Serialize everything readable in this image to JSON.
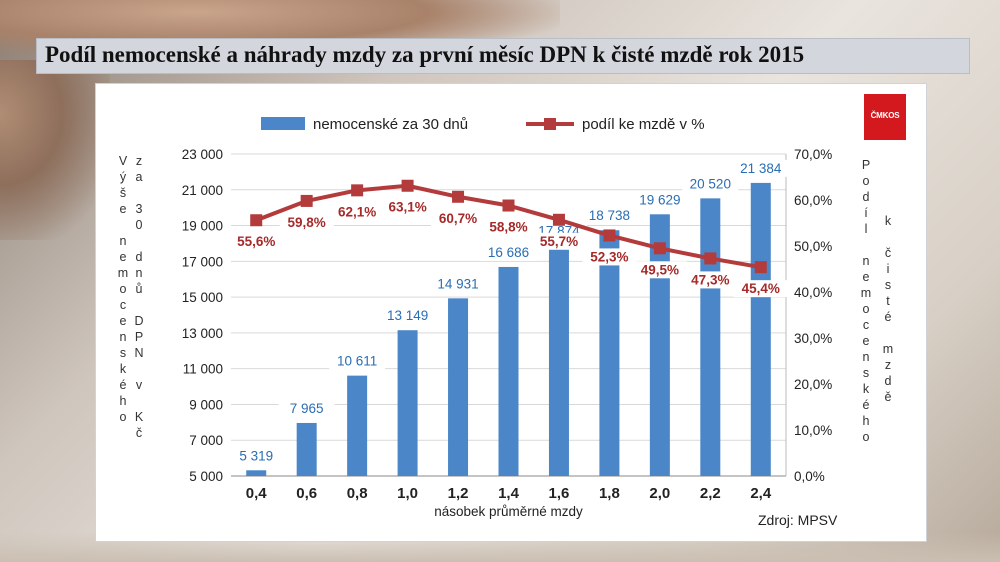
{
  "title": "Podíl nemocenské a náhrady mzdy za první měsíc DPN k čisté mzdě rok 2015",
  "logo_text": "ČMKOS",
  "source": "Zdroj: MPSV",
  "colors": {
    "bar": "#4a86c8",
    "line": "#b33b3b",
    "label_blue": "#2a6db3",
    "label_red": "#a52a2a"
  },
  "chart_data": {
    "type": "bar+line",
    "categories": [
      "0,4",
      "0,6",
      "0,8",
      "1,0",
      "1,2",
      "1,4",
      "1,6",
      "1,8",
      "2,0",
      "2,2",
      "2,4"
    ],
    "xlabel": "násobek průměrné mzdy",
    "ylabel_left_col1": "Výše nemocenského",
    "ylabel_left_col2": "za 30 dnů DPN v Kč",
    "ylabel_right_col1": "Podíl nemocenského",
    "ylabel_right_col2": "k čisté mzdě",
    "ylim_left": [
      5000,
      23000
    ],
    "ylim_right": [
      0,
      70
    ],
    "left_ticks": [
      "5 000",
      "7 000",
      "9 000",
      "11 000",
      "13 000",
      "15 000",
      "17 000",
      "19 000",
      "21 000",
      "23 000"
    ],
    "right_ticks": [
      "0,0%",
      "10,0%",
      "20,0%",
      "30,0%",
      "40,0%",
      "50,0%",
      "60,0%",
      "70,0%"
    ],
    "legend_position": "top",
    "grid": "horizontal",
    "series": [
      {
        "name": "nemocenské za 30 dnů",
        "type": "bar",
        "axis": "left",
        "values": [
          5319,
          7965,
          10611,
          13149,
          14931,
          16686,
          17874,
          18738,
          19629,
          20520,
          21384
        ],
        "labels": [
          "5 319",
          "7 965",
          "10 611",
          "13 149",
          "14 931",
          "16 686",
          "17 874",
          "18 738",
          "19 629",
          "20 520",
          "21 384"
        ]
      },
      {
        "name": "podíl ke mzdě v %",
        "type": "line",
        "axis": "right",
        "values": [
          55.6,
          59.8,
          62.1,
          63.1,
          60.7,
          58.8,
          55.7,
          52.3,
          49.5,
          47.3,
          45.4
        ],
        "labels": [
          "55,6%",
          "59,8%",
          "62,1%",
          "63,1%",
          "60,7%",
          "58,8%",
          "55,7%",
          "52,3%",
          "49,5%",
          "47,3%",
          "45,4%"
        ]
      }
    ]
  }
}
